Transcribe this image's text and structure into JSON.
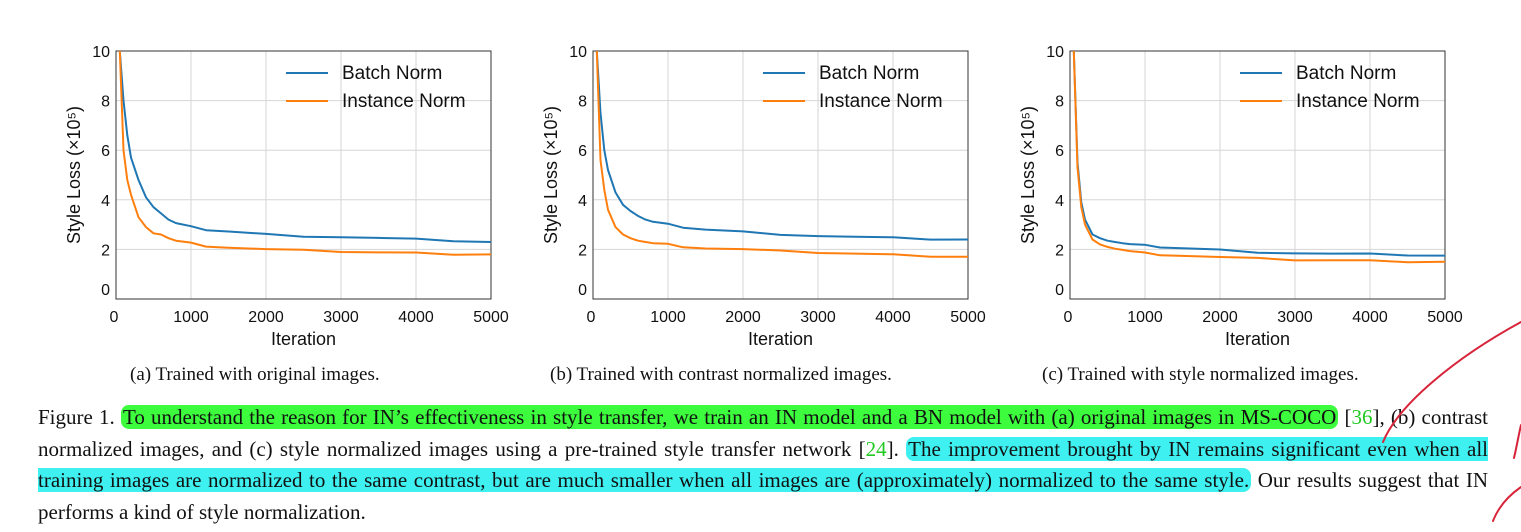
{
  "chart_data": [
    {
      "type": "line",
      "xlabel": "Iteration",
      "ylabel": "Style Loss (×10⁵)",
      "xlim": [
        0,
        5000
      ],
      "ylim": [
        0,
        10
      ],
      "xticks": [
        "0",
        "1000",
        "2000",
        "3000",
        "4000",
        "5000"
      ],
      "yticks": [
        "0",
        "2",
        "4",
        "6",
        "8",
        "10"
      ],
      "grid": true,
      "legend_position": "top-right",
      "series": [
        {
          "name": "Batch Norm",
          "color": "#1f77b4",
          "x": [
            50,
            100,
            150,
            200,
            300,
            400,
            500,
            600,
            700,
            800,
            1000,
            1200,
            1500,
            2000,
            2500,
            3000,
            3500,
            4000,
            4500,
            5000
          ],
          "values": [
            10.0,
            8.0,
            6.6,
            5.7,
            4.8,
            4.1,
            3.7,
            3.45,
            3.2,
            3.05,
            2.9,
            2.8,
            2.72,
            2.6,
            2.55,
            2.5,
            2.45,
            2.4,
            2.35,
            2.3
          ]
        },
        {
          "name": "Instance Norm",
          "color": "#ff7f0e",
          "x": [
            50,
            100,
            150,
            200,
            300,
            400,
            500,
            600,
            700,
            800,
            1000,
            1200,
            1500,
            2000,
            2500,
            3000,
            3500,
            4000,
            4500,
            5000
          ],
          "values": [
            10.0,
            6.0,
            4.8,
            4.2,
            3.3,
            2.9,
            2.65,
            2.6,
            2.45,
            2.35,
            2.25,
            2.15,
            2.08,
            2.0,
            1.95,
            1.92,
            1.88,
            1.85,
            1.82,
            1.8
          ]
        }
      ]
    },
    {
      "type": "line",
      "xlabel": "Iteration",
      "ylabel": "Style Loss (×10⁵)",
      "xlim": [
        0,
        5000
      ],
      "ylim": [
        0,
        10
      ],
      "xticks": [
        "0",
        "1000",
        "2000",
        "3000",
        "4000",
        "5000"
      ],
      "yticks": [
        "0",
        "2",
        "4",
        "6",
        "8",
        "10"
      ],
      "grid": true,
      "legend_position": "top-right",
      "series": [
        {
          "name": "Batch Norm",
          "color": "#1f77b4",
          "x": [
            50,
            100,
            150,
            200,
            300,
            400,
            500,
            600,
            700,
            800,
            1000,
            1200,
            1500,
            2000,
            2500,
            3000,
            3500,
            4000,
            4500,
            5000
          ],
          "values": [
            10.0,
            7.5,
            6.0,
            5.2,
            4.3,
            3.8,
            3.55,
            3.35,
            3.2,
            3.1,
            3.0,
            2.9,
            2.8,
            2.7,
            2.62,
            2.55,
            2.5,
            2.45,
            2.42,
            2.4
          ]
        },
        {
          "name": "Instance Norm",
          "color": "#ff7f0e",
          "x": [
            50,
            100,
            150,
            200,
            300,
            400,
            500,
            600,
            700,
            800,
            1000,
            1200,
            1500,
            2000,
            2500,
            3000,
            3500,
            4000,
            4500,
            5000
          ],
          "values": [
            10.0,
            5.6,
            4.4,
            3.6,
            2.9,
            2.6,
            2.45,
            2.35,
            2.3,
            2.25,
            2.2,
            2.12,
            2.05,
            2.0,
            1.92,
            1.88,
            1.83,
            1.78,
            1.74,
            1.7
          ]
        }
      ]
    },
    {
      "type": "line",
      "xlabel": "Iteration",
      "ylabel": "Style Loss (×10⁵)",
      "xlim": [
        0,
        5000
      ],
      "ylim": [
        0,
        10
      ],
      "xticks": [
        "0",
        "1000",
        "2000",
        "3000",
        "4000",
        "5000"
      ],
      "yticks": [
        "0",
        "2",
        "4",
        "6",
        "8",
        "10"
      ],
      "grid": true,
      "legend_position": "top-right",
      "series": [
        {
          "name": "Batch Norm",
          "color": "#1f77b4",
          "x": [
            50,
            100,
            150,
            200,
            300,
            400,
            500,
            600,
            700,
            800,
            1000,
            1200,
            1500,
            2000,
            2500,
            3000,
            3500,
            4000,
            4500,
            5000
          ],
          "values": [
            10.0,
            5.5,
            3.9,
            3.2,
            2.6,
            2.45,
            2.35,
            2.3,
            2.25,
            2.2,
            2.15,
            2.1,
            2.05,
            1.97,
            1.9,
            1.85,
            1.82,
            1.8,
            1.78,
            1.75
          ]
        },
        {
          "name": "Instance Norm",
          "color": "#ff7f0e",
          "x": [
            50,
            100,
            150,
            200,
            300,
            400,
            500,
            600,
            700,
            800,
            1000,
            1200,
            1500,
            2000,
            2500,
            3000,
            3500,
            4000,
            4500,
            5000
          ],
          "values": [
            10.0,
            5.3,
            3.7,
            3.0,
            2.4,
            2.2,
            2.1,
            2.03,
            1.98,
            1.93,
            1.85,
            1.8,
            1.75,
            1.68,
            1.62,
            1.58,
            1.56,
            1.54,
            1.52,
            1.5
          ]
        }
      ]
    }
  ],
  "subcaptions": [
    "(a)  Trained with original images.",
    "(b)  Trained with contrast normalized images.",
    "(c)  Trained with style normalized images."
  ],
  "caption": {
    "label": "Figure 1.",
    "green_text_1": "To understand the reason for IN’s effectiveness in style transfer, we train an IN model and a BN model with (a) original images in MS-COCO",
    "ref_1": "36",
    "text_2": ", (b) contrast normalized images, and (c) style normalized images using a pre-trained style transfer network ",
    "ref_2": "24",
    "text_3": ". ",
    "cyan_text": "The improvement brought by IN remains significant even when all training images are normalized to the same contrast, but are much smaller when all images are (approximately) normalized to the same style.",
    "text_4": " Our results suggest that IN performs a kind of style normalization."
  },
  "colors": {
    "batch_norm": "#1f77b4",
    "instance_norm": "#ff7f0e",
    "highlight_green": "#3dfb3d",
    "highlight_cyan": "#3ef0f0",
    "reference_link": "#22c922",
    "pen_annotation": "#d8243a"
  }
}
